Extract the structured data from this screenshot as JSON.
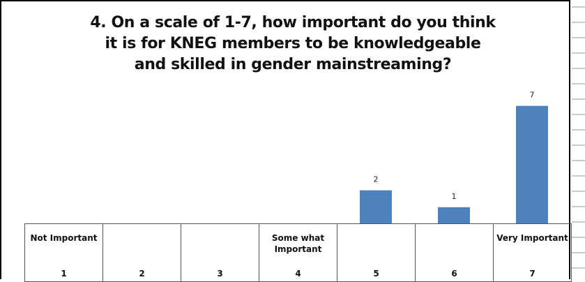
{
  "chart_data": {
    "type": "bar",
    "title_lines": [
      "4. On a scale of 1-7, how important do you think",
      "it is for KNEG members  to be  knowledgeable",
      "and skilled in gender mainstreaming?"
    ],
    "categories": [
      "1",
      "2",
      "3",
      "4",
      "5",
      "6",
      "7"
    ],
    "category_descriptions": [
      "Not Important",
      "",
      "",
      "Some what Important",
      "",
      "",
      "Very Important"
    ],
    "values": [
      0,
      0,
      0,
      0,
      2,
      1,
      7
    ],
    "data_labels": [
      "",
      "",
      "",
      "",
      "2",
      "1",
      "7"
    ],
    "bar_color": "#4F81BD",
    "ylim": [
      0,
      7.4
    ],
    "grid": false,
    "legend": "none"
  }
}
